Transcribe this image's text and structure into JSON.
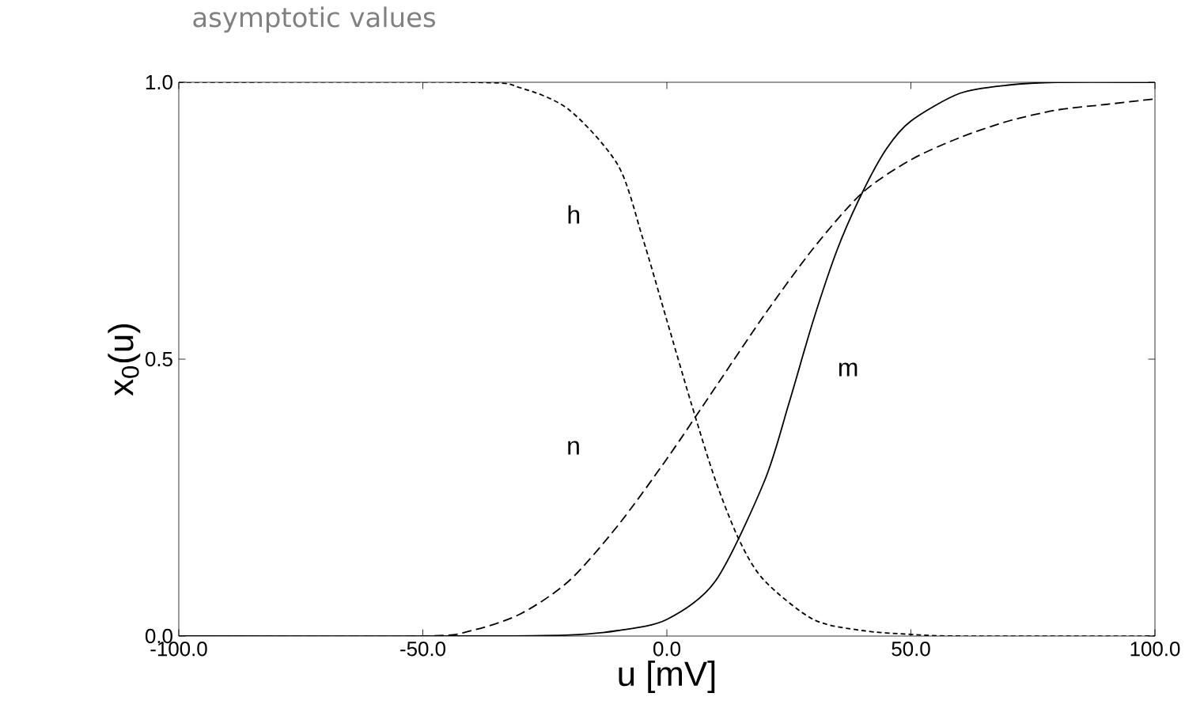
{
  "chart_data": {
    "type": "line",
    "title": "asymptotic values",
    "xlabel": "u [mV]",
    "ylabel": "x$_{0}$(u)",
    "xlim": [
      -100,
      100
    ],
    "ylim": [
      0,
      1
    ],
    "xticks": [
      {
        "value": -100,
        "label": "-100.0"
      },
      {
        "value": -50,
        "label": "-50.0"
      },
      {
        "value": 0,
        "label": "0.0"
      },
      {
        "value": 50,
        "label": "50.0"
      },
      {
        "value": 100,
        "label": "100.0"
      }
    ],
    "yticks": [
      {
        "value": 0,
        "label": "0.0"
      },
      {
        "value": 0.5,
        "label": "0.5"
      },
      {
        "value": 1,
        "label": "1.0"
      }
    ],
    "grid": false,
    "marker": "none",
    "series": [
      {
        "name": "m",
        "color": "#000000",
        "line_style": "solid",
        "x": [
          -100,
          -40,
          -20,
          -10,
          0,
          10,
          20,
          25,
          30,
          35,
          40,
          45,
          50,
          60,
          70,
          80,
          100
        ],
        "values": [
          0,
          0,
          0.002,
          0.01,
          0.03,
          0.1,
          0.28,
          0.42,
          0.57,
          0.7,
          0.8,
          0.88,
          0.93,
          0.98,
          0.995,
          1,
          1
        ]
      },
      {
        "name": "n",
        "color": "#000000",
        "line_style": "dashed",
        "x": [
          -100,
          -50,
          -40,
          -30,
          -20,
          -10,
          0,
          10,
          20,
          30,
          40,
          50,
          60,
          70,
          80,
          90,
          100
        ],
        "values": [
          0,
          0,
          0.01,
          0.04,
          0.1,
          0.2,
          0.32,
          0.45,
          0.58,
          0.7,
          0.8,
          0.86,
          0.9,
          0.93,
          0.95,
          0.96,
          0.97
        ]
      },
      {
        "name": "h",
        "color": "#000000",
        "line_style": "dotted",
        "x": [
          -100,
          -40,
          -30,
          -20,
          -10,
          -5,
          0,
          5,
          10,
          15,
          20,
          30,
          40,
          50,
          60,
          100
        ],
        "values": [
          1,
          1,
          0.99,
          0.95,
          0.85,
          0.72,
          0.57,
          0.42,
          0.28,
          0.17,
          0.1,
          0.03,
          0.01,
          0.003,
          0,
          0
        ]
      }
    ]
  }
}
